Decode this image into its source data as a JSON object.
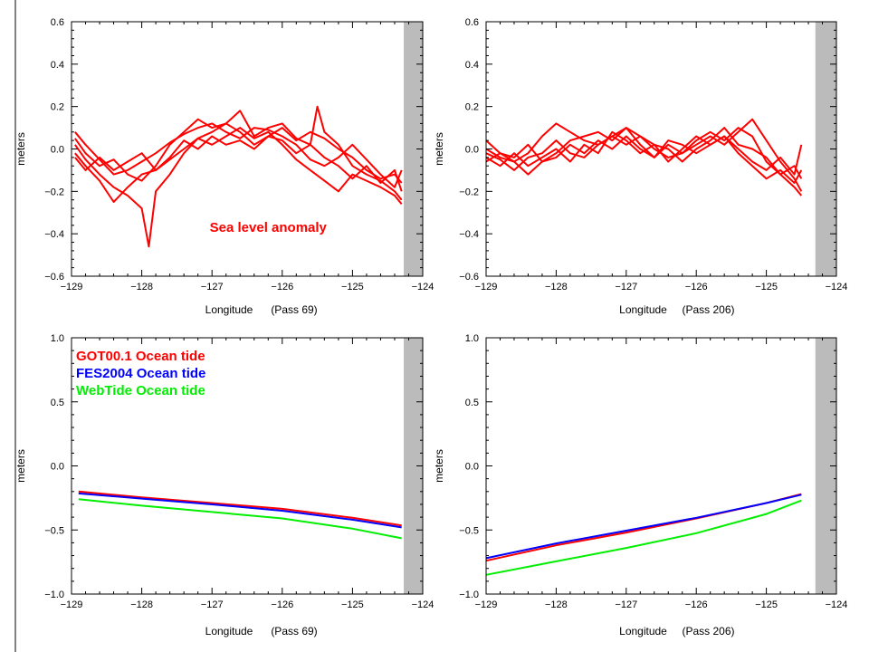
{
  "chart_data": [
    {
      "type": "line",
      "panel": "top-left",
      "xlabel": "Longitude",
      "xlabel_suffix": "(Pass 69)",
      "ylabel": "meters",
      "xlim": [
        -129,
        -124
      ],
      "ylim": [
        -0.6,
        0.6
      ],
      "xticks": [
        -129,
        -128,
        -127,
        -126,
        -125,
        -124
      ],
      "xtick_labels": [
        "−129",
        "−128",
        "−127",
        "−126",
        "−125",
        "−124"
      ],
      "yticks": [
        -0.6,
        -0.4,
        -0.2,
        0.0,
        0.2,
        0.4,
        0.6
      ],
      "ytick_labels": [
        "−0.6",
        "−0.4",
        "−0.2",
        "0.0",
        "0.2",
        "0.4",
        "0.6"
      ],
      "land_band_x": [
        -124.27,
        -124
      ],
      "annotations": [
        {
          "text": "Sea level anomaly",
          "color": "#ff0000",
          "x": -126.2,
          "y": -0.39
        }
      ],
      "series": [
        {
          "color": "#ff0000",
          "x": [
            -128.95,
            -128.8,
            -128.6,
            -128.4,
            -128.2,
            -128.0,
            -127.8,
            -127.6,
            -127.4,
            -127.2,
            -127.0,
            -126.8,
            -126.6,
            -126.4,
            -126.2,
            -126.0,
            -125.8,
            -125.6,
            -125.4,
            -125.2,
            -125.0,
            -124.8,
            -124.6,
            -124.4,
            -124.3
          ],
          "y": [
            0.08,
            0.02,
            -0.05,
            -0.12,
            -0.1,
            -0.06,
            -0.02,
            0.03,
            0.07,
            0.1,
            0.12,
            0.08,
            0.05,
            0.1,
            0.09,
            0.06,
            0.02,
            -0.05,
            -0.08,
            -0.04,
            0.02,
            -0.05,
            -0.12,
            -0.18,
            -0.1
          ]
        },
        {
          "color": "#ff0000",
          "x": [
            -128.95,
            -128.8,
            -128.6,
            -128.4,
            -128.2,
            -128.0,
            -127.9,
            -127.8,
            -127.6,
            -127.4,
            -127.2,
            -127.0,
            -126.8,
            -126.6,
            -126.4,
            -126.2,
            -126.0,
            -125.8,
            -125.6,
            -125.5,
            -125.4,
            -125.2,
            -125.0,
            -124.8,
            -124.6,
            -124.4,
            -124.3
          ],
          "y": [
            0.02,
            -0.05,
            -0.12,
            -0.18,
            -0.22,
            -0.28,
            -0.46,
            -0.2,
            -0.12,
            -0.02,
            0.05,
            0.08,
            0.12,
            0.18,
            0.06,
            0.1,
            0.12,
            0.05,
            0.02,
            0.2,
            0.08,
            0.02,
            -0.08,
            -0.12,
            -0.15,
            -0.2,
            -0.24
          ]
        },
        {
          "color": "#ff0000",
          "x": [
            -128.95,
            -128.8,
            -128.6,
            -128.4,
            -128.2,
            -128.0,
            -127.8,
            -127.6,
            -127.4,
            -127.2,
            -127.0,
            -126.8,
            -126.6,
            -126.4,
            -126.2,
            -126.0,
            -125.8,
            -125.6,
            -125.4,
            -125.2,
            -125.0,
            -124.8,
            -124.6,
            -124.4,
            -124.3
          ],
          "y": [
            -0.02,
            -0.08,
            -0.15,
            -0.25,
            -0.18,
            -0.12,
            -0.1,
            -0.05,
            0.0,
            0.05,
            0.02,
            0.06,
            0.1,
            0.05,
            0.08,
            0.02,
            -0.05,
            -0.1,
            -0.15,
            -0.2,
            -0.12,
            -0.15,
            -0.18,
            -0.22,
            -0.26
          ]
        },
        {
          "color": "#ff0000",
          "x": [
            -128.95,
            -128.8,
            -128.6,
            -128.4,
            -128.2,
            -128.0,
            -127.8,
            -127.6,
            -127.4,
            -127.2,
            -127.0,
            -126.8,
            -126.6,
            -126.4,
            -126.2,
            -126.0,
            -125.8,
            -125.6,
            -125.4,
            -125.2,
            -125.0,
            -124.8,
            -124.6,
            -124.4,
            -124.3
          ],
          "y": [
            0.05,
            -0.02,
            -0.08,
            -0.05,
            -0.12,
            -0.15,
            -0.08,
            0.02,
            0.08,
            0.14,
            0.1,
            0.12,
            0.08,
            0.02,
            0.06,
            0.1,
            0.04,
            0.08,
            0.05,
            0.0,
            -0.04,
            -0.1,
            -0.14,
            -0.12,
            -0.16
          ]
        },
        {
          "color": "#ff0000",
          "x": [
            -128.95,
            -128.8,
            -128.6,
            -128.4,
            -128.2,
            -128.0,
            -127.8,
            -127.6,
            -127.4,
            -127.2,
            -127.0,
            -126.8,
            -126.6,
            -126.4,
            -126.2,
            -126.0,
            -125.8,
            -125.6,
            -125.4,
            -125.2,
            -125.0,
            -124.8,
            -124.6,
            -124.4,
            -124.3
          ],
          "y": [
            -0.04,
            -0.1,
            -0.04,
            -0.1,
            -0.06,
            -0.02,
            -0.1,
            -0.04,
            0.04,
            0.0,
            0.06,
            0.02,
            0.04,
            0.0,
            0.06,
            0.04,
            -0.02,
            0.02,
            -0.04,
            -0.08,
            -0.14,
            -0.08,
            -0.16,
            -0.1,
            -0.2
          ]
        }
      ]
    },
    {
      "type": "line",
      "panel": "top-right",
      "xlabel": "Longitude",
      "xlabel_suffix": "(Pass 206)",
      "ylabel": "meters",
      "xlim": [
        -129,
        -124
      ],
      "ylim": [
        -0.6,
        0.6
      ],
      "xticks": [
        -129,
        -128,
        -127,
        -126,
        -125,
        -124
      ],
      "xtick_labels": [
        "−129",
        "−128",
        "−127",
        "−126",
        "−125",
        "−124"
      ],
      "yticks": [
        -0.6,
        -0.4,
        -0.2,
        0.0,
        0.2,
        0.4,
        0.6
      ],
      "ytick_labels": [
        "−0.6",
        "−0.4",
        "−0.2",
        "0.0",
        "0.2",
        "0.4",
        "0.6"
      ],
      "land_band_x": [
        -124.3,
        -124
      ],
      "annotations": [],
      "series": [
        {
          "color": "#ff0000",
          "x": [
            -129,
            -128.8,
            -128.6,
            -128.4,
            -128.2,
            -128.0,
            -127.8,
            -127.6,
            -127.4,
            -127.2,
            -127.0,
            -126.8,
            -126.6,
            -126.4,
            -126.2,
            -126.0,
            -125.8,
            -125.6,
            -125.4,
            -125.2,
            -125.0,
            -124.8,
            -124.6,
            -124.5
          ],
          "y": [
            0.04,
            -0.02,
            -0.06,
            -0.02,
            0.06,
            0.12,
            0.08,
            0.04,
            0.02,
            0.06,
            0.1,
            0.02,
            -0.04,
            0.02,
            -0.02,
            0.04,
            0.08,
            0.04,
            0.1,
            0.06,
            -0.06,
            -0.12,
            -0.08,
            -0.14
          ]
        },
        {
          "color": "#ff0000",
          "x": [
            -129,
            -128.8,
            -128.6,
            -128.4,
            -128.2,
            -128.0,
            -127.8,
            -127.6,
            -127.4,
            -127.2,
            -127.0,
            -126.8,
            -126.6,
            -126.4,
            -126.2,
            -126.0,
            -125.8,
            -125.6,
            -125.4,
            -125.2,
            -125.0,
            -124.8,
            -124.6,
            -124.5
          ],
          "y": [
            -0.02,
            -0.05,
            -0.1,
            -0.04,
            -0.02,
            0.04,
            -0.02,
            -0.04,
            0.02,
            0.06,
            0.02,
            0.06,
            0.0,
            -0.04,
            -0.02,
            0.02,
            0.06,
            0.02,
            0.08,
            0.14,
            0.04,
            -0.06,
            -0.14,
            -0.2
          ]
        },
        {
          "color": "#ff0000",
          "x": [
            -129,
            -128.8,
            -128.6,
            -128.4,
            -128.2,
            -128.0,
            -127.8,
            -127.6,
            -127.4,
            -127.2,
            -127.0,
            -126.8,
            -126.6,
            -126.4,
            -126.2,
            -126.0,
            -125.8,
            -125.6,
            -125.4,
            -125.2,
            -125.0,
            -124.8,
            -124.6,
            -124.5
          ],
          "y": [
            -0.04,
            -0.08,
            -0.02,
            -0.08,
            -0.04,
            0.0,
            -0.06,
            0.02,
            -0.02,
            0.08,
            0.04,
            -0.02,
            0.02,
            -0.06,
            0.0,
            0.06,
            0.02,
            0.06,
            -0.02,
            -0.08,
            -0.14,
            -0.1,
            -0.16,
            -0.1
          ]
        },
        {
          "color": "#ff0000",
          "x": [
            -129,
            -128.8,
            -128.6,
            -128.4,
            -128.2,
            -128.0,
            -127.8,
            -127.6,
            -127.4,
            -127.2,
            -127.0,
            -126.8,
            -126.6,
            -126.4,
            -126.2,
            -126.0,
            -125.8,
            -125.6,
            -125.4,
            -125.2,
            -125.0,
            -124.8,
            -124.6,
            -124.5
          ],
          "y": [
            0.0,
            -0.04,
            -0.06,
            -0.12,
            -0.06,
            -0.02,
            0.04,
            0.06,
            0.08,
            0.04,
            0.1,
            0.06,
            0.02,
            0.0,
            -0.06,
            0.0,
            0.04,
            0.1,
            0.02,
            0.0,
            -0.04,
            -0.12,
            -0.18,
            -0.22
          ]
        },
        {
          "color": "#ff0000",
          "x": [
            -129,
            -128.8,
            -128.6,
            -128.4,
            -128.2,
            -128.0,
            -127.8,
            -127.6,
            -127.4,
            -127.2,
            -127.0,
            -126.8,
            -126.6,
            -126.4,
            -126.2,
            -126.0,
            -125.8,
            -125.6,
            -125.4,
            -125.2,
            -125.0,
            -124.8,
            -124.6,
            -124.5
          ],
          "y": [
            -0.06,
            -0.02,
            -0.04,
            0.02,
            -0.06,
            -0.04,
            0.02,
            -0.02,
            0.04,
            0.0,
            0.06,
            0.0,
            -0.04,
            0.04,
            0.02,
            -0.02,
            0.02,
            0.06,
            0.0,
            -0.06,
            -0.1,
            -0.04,
            -0.12,
            0.02
          ]
        }
      ]
    },
    {
      "type": "line",
      "panel": "bottom-left",
      "xlabel": "Longitude",
      "xlabel_suffix": "(Pass 69)",
      "ylabel": "meters",
      "xlim": [
        -129,
        -124
      ],
      "ylim": [
        -1.0,
        1.0
      ],
      "xticks": [
        -129,
        -128,
        -127,
        -126,
        -125,
        -124
      ],
      "xtick_labels": [
        "−129",
        "−128",
        "−127",
        "−126",
        "−125",
        "−124"
      ],
      "yticks": [
        -1.0,
        -0.5,
        0.0,
        0.5,
        1.0
      ],
      "ytick_labels": [
        "−1.0",
        "−0.5",
        "0.0",
        "0.5",
        "1.0"
      ],
      "land_band_x": [
        -124.27,
        -124
      ],
      "legend": {
        "placement": "top-left"
      },
      "series": [
        {
          "name": "GOT00.1 Ocean tide",
          "color": "#ff0000",
          "x": [
            -128.9,
            -128,
            -127,
            -126,
            -125,
            -124.3
          ],
          "y": [
            -0.2,
            -0.245,
            -0.29,
            -0.335,
            -0.405,
            -0.465
          ]
        },
        {
          "name": "FES2004 Ocean tide",
          "color": "#0000ff",
          "x": [
            -128.9,
            -128,
            -127,
            -126,
            -125,
            -124.3
          ],
          "y": [
            -0.215,
            -0.255,
            -0.3,
            -0.35,
            -0.42,
            -0.48
          ]
        },
        {
          "name": "WebTide Ocean tide",
          "color": "#00ee00",
          "x": [
            -128.9,
            -128,
            -127,
            -126,
            -125,
            -124.3
          ],
          "y": [
            -0.26,
            -0.31,
            -0.36,
            -0.41,
            -0.49,
            -0.565
          ]
        }
      ]
    },
    {
      "type": "line",
      "panel": "bottom-right",
      "xlabel": "Longitude",
      "xlabel_suffix": "(Pass 206)",
      "ylabel": "meters",
      "xlim": [
        -129,
        -124
      ],
      "ylim": [
        -1.0,
        1.0
      ],
      "xticks": [
        -129,
        -128,
        -127,
        -126,
        -125,
        -124
      ],
      "xtick_labels": [
        "−129",
        "−128",
        "−127",
        "−126",
        "−125",
        "−124"
      ],
      "yticks": [
        -1.0,
        -0.5,
        0.0,
        0.5,
        1.0
      ],
      "ytick_labels": [
        "−1.0",
        "−0.5",
        "0.0",
        "0.5",
        "1.0"
      ],
      "land_band_x": [
        -124.3,
        -124
      ],
      "series": [
        {
          "color": "#ff0000",
          "x": [
            -129,
            -128,
            -127,
            -126,
            -125,
            -124.5
          ],
          "y": [
            -0.74,
            -0.62,
            -0.52,
            -0.41,
            -0.29,
            -0.22
          ]
        },
        {
          "color": "#0000ff",
          "x": [
            -129,
            -128,
            -127,
            -126,
            -125,
            -124.5
          ],
          "y": [
            -0.72,
            -0.605,
            -0.505,
            -0.405,
            -0.29,
            -0.225
          ]
        },
        {
          "color": "#00ee00",
          "x": [
            -129,
            -128,
            -127,
            -126,
            -125,
            -124.5
          ],
          "y": [
            -0.85,
            -0.745,
            -0.64,
            -0.525,
            -0.375,
            -0.27
          ]
        }
      ]
    }
  ],
  "colors": {
    "land": "#bbbbbb",
    "axis": "#000000",
    "background": "#ffffff"
  }
}
